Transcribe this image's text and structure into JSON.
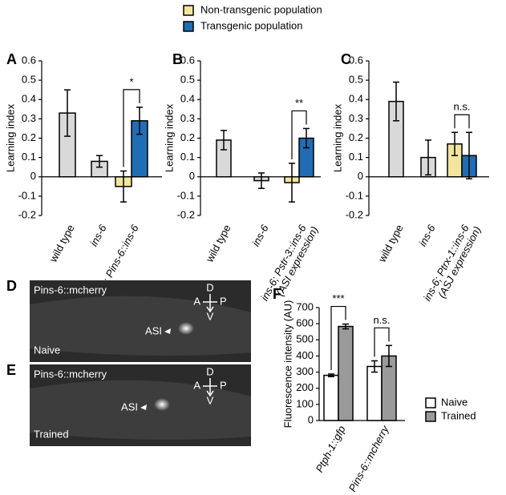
{
  "legend": [
    {
      "label": "Non-transgenic population",
      "color": "#f2e59c"
    },
    {
      "label": "Transgenic population",
      "color": "#1f6db5"
    }
  ],
  "chart_data": [
    {
      "type": "bar",
      "panel": "A",
      "ylabel": "Learning index",
      "ylim": [
        -0.2,
        0.6
      ],
      "yticks": [
        -0.2,
        -0.1,
        0,
        0.1,
        0.2,
        0.3,
        0.4,
        0.5,
        0.6
      ],
      "categories": [
        [
          "wild type"
        ],
        [
          "ins-6"
        ],
        [
          "ins-6; Pins-6::ins-6"
        ]
      ],
      "series": [
        {
          "color": "#d9d9d9",
          "values": [
            0.33,
            0.08,
            null
          ],
          "errors": [
            0.12,
            0.03,
            null
          ]
        },
        {
          "color": "#f2e59c",
          "values": [
            null,
            null,
            -0.05
          ],
          "errors": [
            null,
            null,
            0.08
          ]
        },
        {
          "color": "#1f6db5",
          "values": [
            null,
            null,
            0.29
          ],
          "errors": [
            null,
            null,
            0.07
          ]
        }
      ],
      "annotations": [
        null,
        null,
        "*"
      ]
    },
    {
      "type": "bar",
      "panel": "B",
      "ylabel": "Learning index",
      "ylim": [
        -0.2,
        0.6
      ],
      "yticks": [
        -0.2,
        -0.1,
        0,
        0.1,
        0.2,
        0.3,
        0.4,
        0.5,
        0.6
      ],
      "categories": [
        [
          "wild type"
        ],
        [
          "ins-6"
        ],
        [
          "ins-6; Pstr-3::ins-6",
          "(ASI expression)"
        ]
      ],
      "series": [
        {
          "color": "#d9d9d9",
          "values": [
            0.19,
            -0.02,
            null
          ],
          "errors": [
            0.05,
            0.04,
            null
          ]
        },
        {
          "color": "#f2e59c",
          "values": [
            null,
            null,
            -0.03
          ],
          "errors": [
            null,
            null,
            0.1
          ]
        },
        {
          "color": "#1f6db5",
          "values": [
            null,
            null,
            0.2
          ],
          "errors": [
            null,
            null,
            0.05
          ]
        }
      ],
      "annotations": [
        null,
        null,
        "**"
      ]
    },
    {
      "type": "bar",
      "panel": "C",
      "ylabel": "Learning index",
      "ylim": [
        -0.2,
        0.6
      ],
      "yticks": [
        -0.2,
        -0.1,
        0,
        0.1,
        0.2,
        0.3,
        0.4,
        0.5,
        0.6
      ],
      "categories": [
        [
          "wild type"
        ],
        [
          "ins-6"
        ],
        [
          "ins-6; Ptrx-1::ins-6",
          "(ASJ expression)"
        ]
      ],
      "series": [
        {
          "color": "#d9d9d9",
          "values": [
            0.39,
            0.1,
            null
          ],
          "errors": [
            0.1,
            0.09,
            null
          ]
        },
        {
          "color": "#f2e59c",
          "values": [
            null,
            null,
            0.17
          ],
          "errors": [
            null,
            null,
            0.06
          ]
        },
        {
          "color": "#1f6db5",
          "values": [
            null,
            null,
            0.11
          ],
          "errors": [
            null,
            null,
            0.12
          ]
        }
      ],
      "annotations": [
        null,
        null,
        "n.s."
      ]
    },
    {
      "type": "bar",
      "panel": "F",
      "ylabel": "Fluorescence intensity (AU)",
      "ylim": [
        0,
        700
      ],
      "yticks": [
        0,
        100,
        200,
        300,
        400,
        500,
        600,
        700
      ],
      "categories": [
        [
          "Ptph-1::gfp"
        ],
        [
          "Pins-6::mcherry"
        ]
      ],
      "series": [
        {
          "name": "Naive",
          "color": "#ffffff",
          "values": [
            280,
            335
          ],
          "errors": [
            8,
            35
          ]
        },
        {
          "name": "Trained",
          "color": "#9a9a9a",
          "values": [
            583,
            400
          ],
          "errors": [
            15,
            65
          ]
        }
      ],
      "annotations": [
        "***",
        "n.s."
      ]
    }
  ],
  "images": [
    {
      "panel": "D",
      "label": "Pins-6::mcherry",
      "condition": "Naive",
      "neuron": "ASI",
      "compass": [
        "D",
        "A",
        "P",
        "V"
      ]
    },
    {
      "panel": "E",
      "label": "Pins-6::mcherry",
      "condition": "Trained",
      "neuron": "ASI",
      "compass": [
        "D",
        "A",
        "P",
        "V"
      ]
    }
  ]
}
